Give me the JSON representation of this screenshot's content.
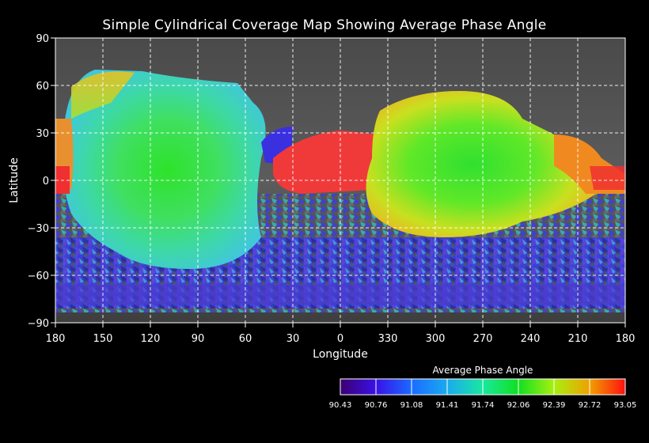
{
  "title": "Simple Cylindrical Coverage Map Showing Average Phase Angle",
  "map": {
    "projection": "simple cylindrical",
    "x_axis": {
      "label": "Longitude",
      "tick_labels": [
        "180",
        "150",
        "120",
        "90",
        "60",
        "30",
        "0",
        "330",
        "300",
        "270",
        "240",
        "210",
        "180"
      ]
    },
    "y_axis": {
      "label": "Latitude",
      "range": [
        -90,
        90
      ],
      "tick_labels": [
        "90",
        "60",
        "30",
        "0",
        "−30",
        "−60",
        "−90"
      ]
    },
    "grid": "dashed white, every 30 degrees"
  },
  "colorbar": {
    "title": "Average Phase Angle",
    "tick_labels": [
      "90.43",
      "90.76",
      "91.08",
      "91.41",
      "91.74",
      "92.06",
      "92.39",
      "92.72",
      "93.05"
    ],
    "min": 90.43,
    "max": 93.05,
    "colors": [
      "#3c0070",
      "#3a10e8",
      "#1a6cff",
      "#1aaaf0",
      "#1ae8a0",
      "#10e020",
      "#a8f010",
      "#f0a000",
      "#ff1010"
    ]
  }
}
